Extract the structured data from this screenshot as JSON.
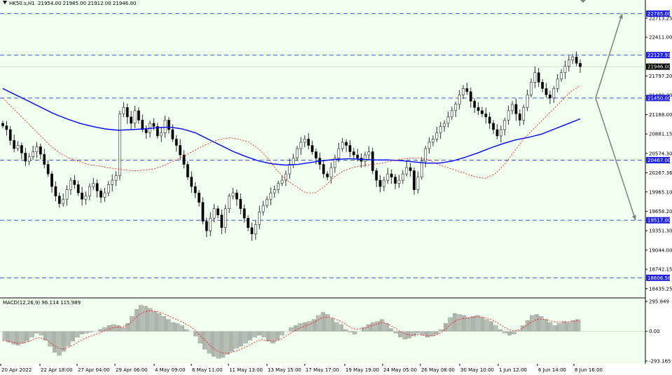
{
  "header": {
    "symbol_timeframe": "HK50.s,H1",
    "ohlc": "21954.00 21985.00 21912.00 21946.00"
  },
  "macd": {
    "label": "MACD(12,26,9)",
    "values": "96.114 115.989",
    "axis_ticks": [
      "295.849",
      "0.00",
      "-293.165"
    ]
  },
  "colors": {
    "background": "#f0ffef",
    "bull_candle": "#000000",
    "bear_candle": "#000000",
    "sma_slow": "#0000ff",
    "sma_fast": "#ff0000",
    "level_line": "#3b5bdb",
    "level_tag": "#2020e0",
    "price_tag": "#000000",
    "arrow": "#808080"
  },
  "chart_data": {
    "type": "line",
    "title": "HK50.s,H1",
    "ylim": [
      18300,
      23000
    ],
    "y_ticks": [
      "22713.25",
      "22411.00",
      "21797.20",
      "21490.30",
      "21188.00",
      "20881.15",
      "20574.30",
      "20267.36",
      "19965.10",
      "19658.20",
      "19351.30",
      "19044.00",
      "18742.15",
      "18435.25"
    ],
    "x_ticks": [
      "20 Apr 2022",
      "22 Apr 18:00",
      "27 Apr 04:00",
      "29 Apr 06:00",
      "4 May 09:00",
      "6 May 11:00",
      "11 May 13:00",
      "13 May 15:00",
      "17 May 17:00",
      "19 May 19:00",
      "24 May 05:00",
      "26 May 08:00",
      "30 May 10:00",
      "1 Jun 12:00",
      "6 Jun 14:00",
      "8 Jun 16:00"
    ],
    "levels": [
      {
        "value": "22785.00"
      },
      {
        "value": "22127.93"
      },
      {
        "value": "21450.00"
      },
      {
        "value": "20467.00"
      },
      {
        "value": "19517.00"
      },
      {
        "value": "18606.58"
      }
    ],
    "current_price": "21946.00",
    "close_series": [
      21010,
      20950,
      20780,
      20650,
      20700,
      20580,
      20450,
      20520,
      20600,
      20680,
      20560,
      20400,
      20250,
      20050,
      19900,
      19780,
      19850,
      20000,
      20150,
      20080,
      19950,
      19850,
      19900,
      20050,
      20100,
      19980,
      19880,
      19950,
      20080,
      20150,
      20220,
      21200,
      21300,
      21150,
      21050,
      21250,
      21100,
      20950,
      20900,
      21050,
      21000,
      20850,
      20900,
      21100,
      20950,
      20800,
      20700,
      20550,
      20400,
      20200,
      20050,
      19950,
      19800,
      19500,
      19350,
      19550,
      19700,
      19600,
      19400,
      19700,
      19900,
      19950,
      19850,
      19700,
      19550,
      19400,
      19300,
      19450,
      19650,
      19750,
      19850,
      19950,
      20000,
      20100,
      20150,
      20250,
      20400,
      20500,
      20650,
      20750,
      20800,
      20700,
      20600,
      20500,
      20400,
      20250,
      20200,
      20350,
      20500,
      20650,
      20750,
      20700,
      20600,
      20550,
      20500,
      20450,
      20550,
      20600,
      20300,
      20150,
      20050,
      20150,
      20250,
      20200,
      20100,
      20150,
      20250,
      20350,
      20300,
      20000,
      20200,
      20450,
      20650,
      20750,
      20800,
      20900,
      21000,
      21050,
      21150,
      21250,
      21350,
      21500,
      21600,
      21550,
      21400,
      21300,
      21250,
      21200,
      21150,
      21050,
      20950,
      20850,
      20950,
      21100,
      21250,
      21350,
      21200,
      21100,
      21300,
      21500,
      21700,
      21850,
      21700,
      21600,
      21500,
      21450,
      21600,
      21750,
      21850,
      21950,
      22050,
      22100,
      22000,
      21946
    ],
    "series": [
      {
        "values": [
          21010,
          20950,
          20780,
          20650,
          20700,
          20580,
          20450,
          20520,
          20600,
          20680,
          20560,
          20400,
          20250,
          20050,
          19900,
          19780,
          19850,
          20000,
          20150,
          20080,
          19950,
          19850,
          19900,
          20050,
          20100,
          19980,
          19880,
          19950,
          20080,
          20150,
          20220,
          21200,
          21300,
          21150,
          21050,
          21250,
          21100,
          20950,
          20900,
          21050,
          21000,
          20850,
          20900,
          21100,
          20950,
          20800,
          20700,
          20550,
          20400,
          20200,
          20050,
          19950,
          19800,
          19500,
          19350,
          19550,
          19700,
          19600,
          19400,
          19700,
          19900,
          19950,
          19850,
          19700,
          19550,
          19400,
          19300,
          19450,
          19650,
          19750,
          19850,
          19950,
          20000,
          20100,
          20150,
          20250,
          20400,
          20500,
          20650,
          20750,
          20800,
          20700,
          20600,
          20500,
          20400,
          20250,
          20200,
          20350,
          20500,
          20650,
          20750,
          20700,
          20600,
          20550,
          20500,
          20450,
          20550,
          20600,
          20300,
          20150,
          20050,
          20150,
          20250,
          20200,
          20100,
          20150,
          20250,
          20350,
          20300,
          20000,
          20200,
          20450,
          20650,
          20750,
          20800,
          20900,
          21000,
          21050,
          21150,
          21250,
          21350,
          21500,
          21600,
          21550,
          21400,
          21300,
          21250,
          21200,
          21150,
          21050,
          20950,
          20850,
          20950,
          21100,
          21250,
          21350,
          21200,
          21100,
          21300,
          21500,
          21700,
          21850,
          21700,
          21600,
          21500,
          21450,
          21600,
          21750,
          21850,
          21950,
          22050,
          22100,
          22000,
          21946
        ]
      },
      {
        "values": [
          21450,
          21300,
          21150,
          21000,
          20850,
          20700,
          20580,
          20500,
          20450,
          20400,
          20380,
          20350,
          20330,
          20310,
          20300,
          20310,
          20330,
          20380,
          20450,
          20520,
          20600,
          20680,
          20750,
          20800,
          20820,
          20800,
          20750,
          20650,
          20500,
          20300,
          20150,
          20050,
          19950,
          19950,
          20050,
          20200,
          20300,
          20350,
          20380,
          20400,
          20420,
          20450,
          20480,
          20500,
          20500,
          20470,
          20400,
          20350,
          20300,
          20250,
          20200,
          20180,
          20250,
          20400,
          20600,
          20800,
          20950,
          21100,
          21250,
          21400,
          21550,
          21650
        ]
      },
      {
        "values": [
          21600,
          21500,
          21400,
          21300,
          21200,
          21120,
          21050,
          21000,
          20960,
          20940,
          20950,
          20960,
          20980,
          20990,
          20960,
          20900,
          20800,
          20700,
          20600,
          20520,
          20450,
          20410,
          20390,
          20400,
          20430,
          20460,
          20480,
          20490,
          20480,
          20470,
          20470,
          20460,
          20440,
          20420,
          20420,
          20450,
          20510,
          20580,
          20660,
          20730,
          20790,
          20830,
          20880,
          20960,
          21040,
          21120
        ]
      }
    ],
    "macd_ylim": [
      -293.165,
      295.849
    ],
    "macd_hist": [
      -90,
      -110,
      -130,
      -140,
      -120,
      -100,
      -60,
      -20,
      -40,
      -90,
      -150,
      -210,
      -240,
      -200,
      -150,
      -100,
      -60,
      -30,
      -20,
      -10,
      0,
      20,
      40,
      60,
      70,
      60,
      40,
      80,
      150,
      220,
      260,
      250,
      230,
      200,
      180,
      150,
      120,
      90,
      80,
      60,
      20,
      0,
      -50,
      -120,
      -180,
      -220,
      -250,
      -270,
      -260,
      -230,
      -200,
      -170,
      -150,
      -120,
      -90,
      -60,
      -40,
      -60,
      -100,
      -120,
      -90,
      -40,
      0,
      40,
      60,
      80,
      90,
      100,
      120,
      160,
      190,
      170,
      130,
      90,
      70,
      20,
      -10,
      -30,
      0,
      40,
      70,
      90,
      100,
      120,
      80,
      30,
      -20,
      -60,
      -80,
      -70,
      -50,
      -20,
      -40,
      -60,
      -50,
      -30,
      20,
      80,
      140,
      180,
      170,
      160,
      140,
      150,
      160,
      140,
      120,
      100,
      60,
      20,
      -20,
      -40,
      -30,
      10,
      60,
      110,
      160,
      170,
      150,
      120,
      90,
      60,
      80,
      100,
      90,
      110,
      120,
      96
    ]
  }
}
